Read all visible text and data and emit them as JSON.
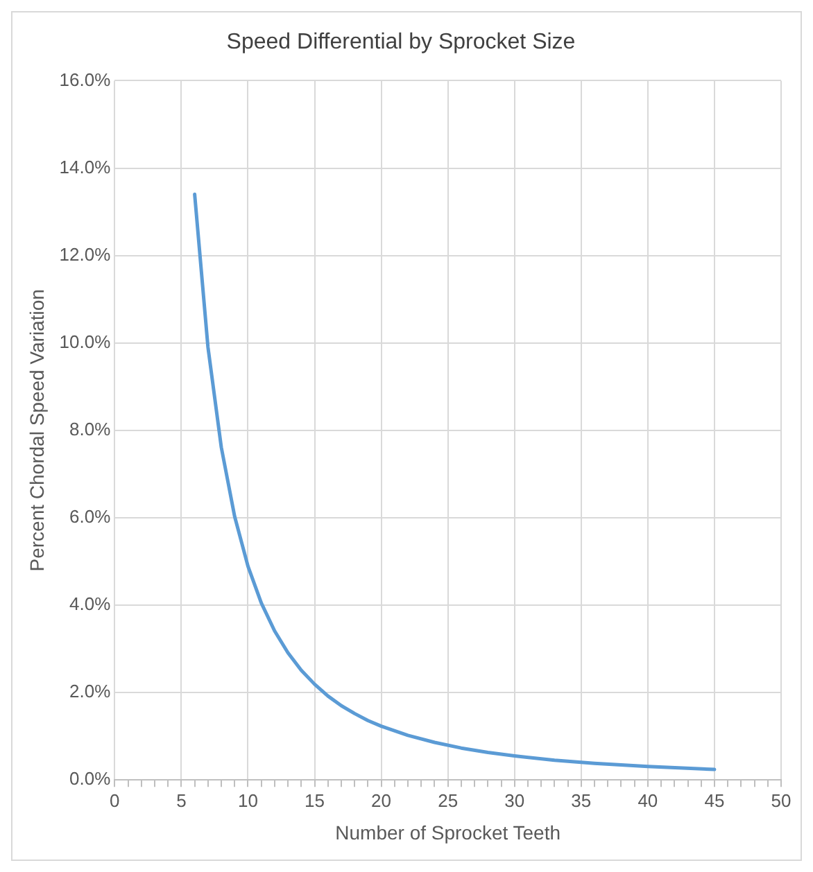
{
  "chart_data": {
    "type": "line",
    "title": "Speed Differential by Sprocket Size",
    "xlabel": "Number of Sprocket Teeth",
    "ylabel": "Percent Chordal Speed Variation",
    "series": [
      {
        "color": "#5b9bd5",
        "x": [
          6,
          7,
          8,
          9,
          10,
          11,
          12,
          13,
          14,
          15,
          16,
          17,
          18,
          19,
          20,
          22,
          24,
          26,
          28,
          30,
          33,
          36,
          40,
          45
        ],
        "values": [
          13.4,
          9.9,
          7.61,
          6.03,
          4.89,
          4.05,
          3.41,
          2.91,
          2.51,
          2.19,
          1.92,
          1.7,
          1.52,
          1.36,
          1.23,
          1.02,
          0.86,
          0.73,
          0.63,
          0.55,
          0.45,
          0.38,
          0.31,
          0.24
        ]
      }
    ],
    "xlim": [
      0,
      50
    ],
    "xticks": [
      0,
      {
        "value": 1,
        "label": null
      },
      {
        "value": 2,
        "label": null
      },
      {
        "value": 3,
        "label": null
      },
      {
        "value": 4,
        "label": null
      },
      5,
      {
        "value": 6,
        "label": null
      },
      {
        "value": 7,
        "label": null
      },
      {
        "value": 8,
        "label": null
      },
      {
        "value": 9,
        "label": null
      },
      10,
      {
        "value": 11,
        "label": null
      },
      {
        "value": 12,
        "label": null
      },
      {
        "value": 13,
        "label": null
      },
      {
        "value": 14,
        "label": null
      },
      15,
      {
        "value": 16,
        "label": null
      },
      {
        "value": 17,
        "label": null
      },
      {
        "value": 18,
        "label": null
      },
      {
        "value": 19,
        "label": null
      },
      20,
      {
        "value": 21,
        "label": null
      },
      {
        "value": 22,
        "label": null
      },
      {
        "value": 23,
        "label": null
      },
      {
        "value": 24,
        "label": null
      },
      25,
      {
        "value": 26,
        "label": null
      },
      {
        "value": 27,
        "label": null
      },
      {
        "value": 28,
        "label": null
      },
      {
        "value": 29,
        "label": null
      },
      30,
      {
        "value": 31,
        "label": null
      },
      {
        "value": 32,
        "label": null
      },
      {
        "value": 33,
        "label": null
      },
      {
        "value": 34,
        "label": null
      },
      35,
      {
        "value": 36,
        "label": null
      },
      {
        "value": 37,
        "label": null
      },
      {
        "value": 38,
        "label": null
      },
      {
        "value": 39,
        "label": null
      },
      40,
      {
        "value": 41,
        "label": null
      },
      {
        "value": 42,
        "label": null
      },
      {
        "value": 43,
        "label": null
      },
      {
        "value": 44,
        "label": null
      },
      45,
      {
        "value": 46,
        "label": null
      },
      {
        "value": 47,
        "label": null
      },
      {
        "value": 48,
        "label": null
      },
      {
        "value": 49,
        "label": null
      },
      50
    ],
    "ylim": [
      0,
      16
    ],
    "yticks": [
      {
        "value": 0,
        "label": "0.0%"
      },
      {
        "value": 2,
        "label": "2.0%"
      },
      {
        "value": 4,
        "label": "4.0%"
      },
      {
        "value": 6,
        "label": "6.0%"
      },
      {
        "value": 8,
        "label": "8.0%"
      },
      {
        "value": 10,
        "label": "10.0%"
      },
      {
        "value": 12,
        "label": "12.0%"
      },
      {
        "value": 14,
        "label": "14.0%"
      },
      {
        "value": 16,
        "label": "16.0%"
      }
    ],
    "grid": true,
    "legend": false,
    "marker": "none",
    "line_style": "solid"
  }
}
